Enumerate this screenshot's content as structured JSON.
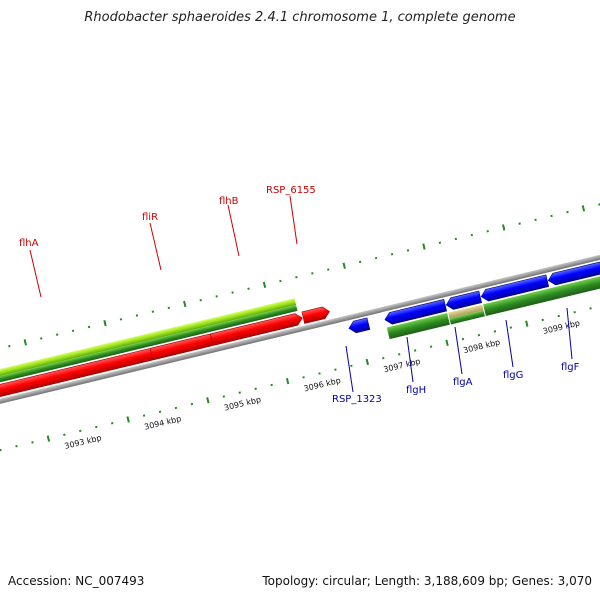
{
  "header": {
    "title": "Rhodobacter sphaeroides 2.4.1 chromosome 1, complete genome"
  },
  "footer": {
    "accession": "Accession: NC_007493",
    "summary": "Topology: circular; Length: 3,188,609 bp; Genes: 3,070"
  },
  "colors": {
    "forward_gene": "#ff0000",
    "reverse_gene": "#0000ff",
    "forward_label": "#cc0000",
    "reverse_label": "#0000aa",
    "backbone": "#888888",
    "tick": "#228b22",
    "cds_green": "#2e8b22",
    "cds_lime": "#9be31a"
  },
  "map": {
    "kbp_labels": [
      "3093 kbp",
      "3094 kbp",
      "3095 kbp",
      "3096 kbp",
      "3097 kbp",
      "3098 kbp",
      "3099 kbp"
    ],
    "forward_gene_labels": [
      "flhA",
      "fliR",
      "flhB",
      "RSP_6155"
    ],
    "reverse_gene_labels": [
      "RSP_1323",
      "flgH",
      "flgA",
      "flgG",
      "flgF"
    ]
  }
}
